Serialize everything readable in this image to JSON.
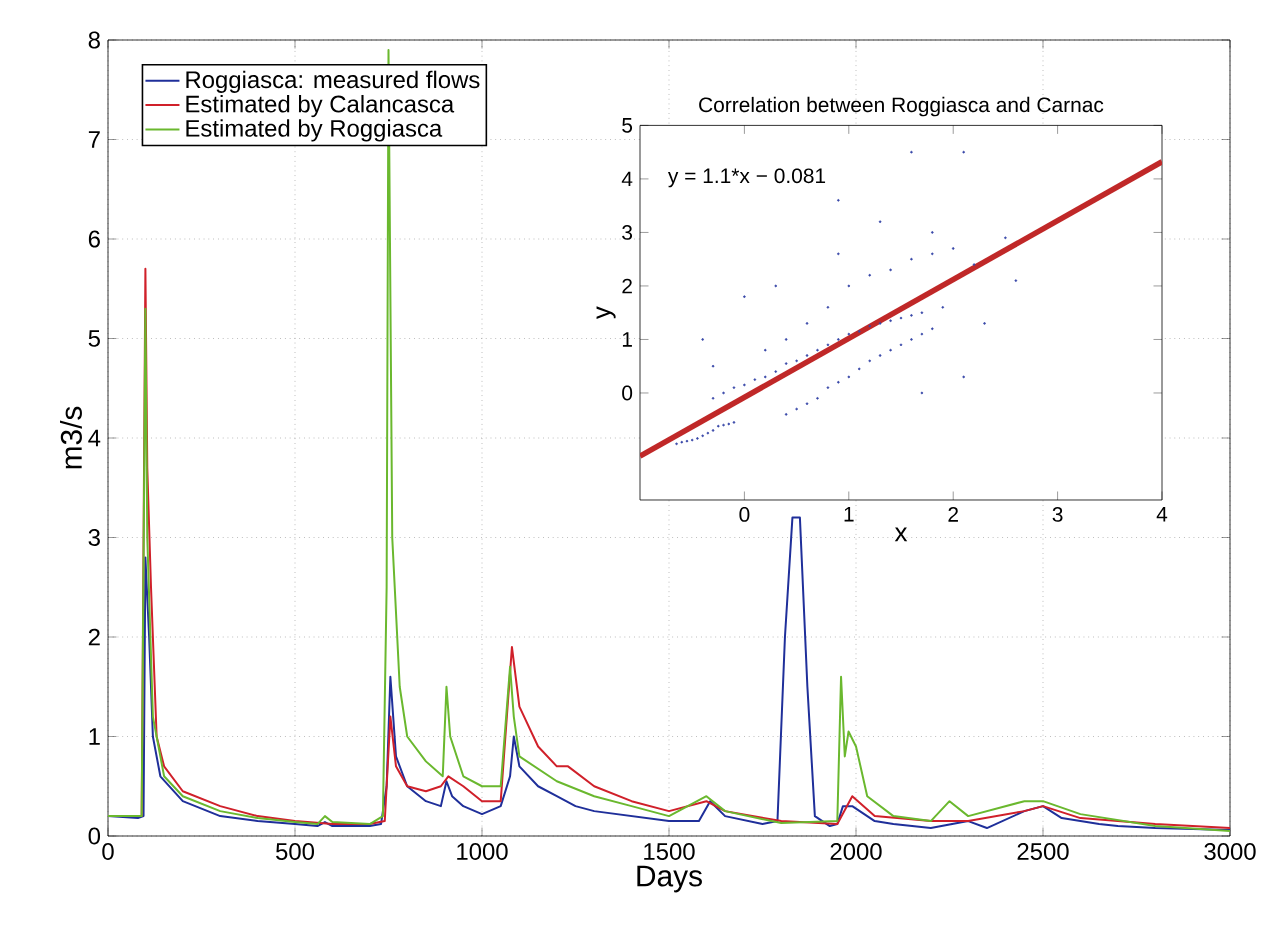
{
  "chart_data": [
    {
      "type": "line",
      "xlabel": "Days",
      "ylabel": "m3/s",
      "xlim": [
        0,
        3000
      ],
      "ylim": [
        0,
        8
      ],
      "xticks": [
        0,
        500,
        1000,
        1500,
        2000,
        2500,
        3000
      ],
      "yticks": [
        0,
        1,
        2,
        3,
        4,
        5,
        6,
        7,
        8
      ],
      "grid": true,
      "legend": "top left",
      "line_style": "solid",
      "marker": "none",
      "series": [
        {
          "name": "Roggiasca: measured flows",
          "color": "#1f2f9a",
          "x": [
            0,
            80,
            95,
            100,
            110,
            120,
            140,
            200,
            300,
            400,
            500,
            560,
            580,
            600,
            700,
            730,
            745,
            755,
            770,
            800,
            850,
            890,
            905,
            920,
            950,
            1000,
            1050,
            1075,
            1085,
            1100,
            1150,
            1200,
            1250,
            1300,
            1400,
            1500,
            1580,
            1610,
            1650,
            1750,
            1790,
            1810,
            1830,
            1850,
            1870,
            1890,
            1930,
            1950,
            1965,
            1990,
            2050,
            2100,
            2200,
            2300,
            2350,
            2450,
            2500,
            2550,
            2650,
            2700,
            2800,
            3000
          ],
          "values": [
            0.2,
            0.18,
            0.2,
            2.8,
            2.0,
            1.0,
            0.6,
            0.35,
            0.2,
            0.15,
            0.12,
            0.1,
            0.14,
            0.1,
            0.1,
            0.12,
            0.5,
            1.6,
            0.8,
            0.5,
            0.35,
            0.3,
            0.55,
            0.4,
            0.3,
            0.22,
            0.3,
            0.6,
            1.0,
            0.7,
            0.5,
            0.4,
            0.3,
            0.25,
            0.2,
            0.15,
            0.15,
            0.35,
            0.2,
            0.12,
            0.15,
            2.0,
            3.2,
            3.2,
            1.5,
            0.2,
            0.1,
            0.12,
            0.3,
            0.3,
            0.15,
            0.12,
            0.08,
            0.15,
            0.08,
            0.25,
            0.3,
            0.18,
            0.12,
            0.1,
            0.08,
            0.06
          ]
        },
        {
          "name": "Estimated by Calancasca",
          "color": "#d0202a",
          "x": [
            0,
            90,
            100,
            105,
            115,
            130,
            150,
            200,
            300,
            400,
            500,
            600,
            700,
            740,
            755,
            770,
            800,
            850,
            890,
            910,
            950,
            1000,
            1050,
            1080,
            1100,
            1150,
            1200,
            1230,
            1300,
            1400,
            1500,
            1600,
            1650,
            1800,
            1950,
            1990,
            2050,
            2200,
            2300,
            2450,
            2500,
            2600,
            2800,
            3000
          ],
          "values": [
            0.2,
            0.2,
            5.7,
            3.7,
            2.5,
            1.0,
            0.7,
            0.45,
            0.3,
            0.2,
            0.15,
            0.12,
            0.12,
            0.15,
            1.2,
            0.7,
            0.5,
            0.45,
            0.5,
            0.6,
            0.5,
            0.35,
            0.35,
            1.9,
            1.3,
            0.9,
            0.7,
            0.7,
            0.5,
            0.35,
            0.25,
            0.35,
            0.25,
            0.15,
            0.12,
            0.4,
            0.2,
            0.15,
            0.15,
            0.25,
            0.3,
            0.18,
            0.12,
            0.08
          ]
        },
        {
          "name": "Estimated by Roggiasca",
          "color": "#6ab82e",
          "x": [
            0,
            90,
            100,
            105,
            120,
            150,
            200,
            300,
            400,
            500,
            560,
            580,
            600,
            700,
            735,
            745,
            750,
            760,
            780,
            800,
            850,
            895,
            905,
            915,
            950,
            1000,
            1050,
            1075,
            1085,
            1100,
            1200,
            1300,
            1400,
            1500,
            1600,
            1650,
            1800,
            1950,
            1960,
            1970,
            1980,
            2000,
            2030,
            2100,
            2200,
            2250,
            2300,
            2450,
            2500,
            2600,
            2800,
            3000
          ],
          "values": [
            0.2,
            0.2,
            5.3,
            3.0,
            1.2,
            0.6,
            0.4,
            0.25,
            0.18,
            0.14,
            0.12,
            0.2,
            0.14,
            0.12,
            0.2,
            2.5,
            7.9,
            3.0,
            1.5,
            1.0,
            0.75,
            0.6,
            1.5,
            1.0,
            0.6,
            0.5,
            0.5,
            1.7,
            1.2,
            0.8,
            0.55,
            0.4,
            0.3,
            0.2,
            0.4,
            0.25,
            0.13,
            0.15,
            1.6,
            0.8,
            1.05,
            0.9,
            0.4,
            0.2,
            0.15,
            0.35,
            0.2,
            0.35,
            0.35,
            0.22,
            0.1,
            0.05
          ]
        }
      ]
    },
    {
      "type": "scatter",
      "title": "Correlation between Roggiasca and Carnac",
      "xlabel": "x",
      "ylabel": "y",
      "xlim": [
        -1,
        4
      ],
      "ylim": [
        -2,
        5
      ],
      "xticks": [
        0,
        1,
        2,
        3,
        4
      ],
      "yticks": [
        0,
        1,
        2,
        3,
        4,
        5
      ],
      "marker": "circle",
      "annotations": [
        "y = 1.1*x − 0.081"
      ],
      "series": [
        {
          "color": "#3848a8",
          "x": [
            -0.65,
            -0.6,
            -0.55,
            -0.5,
            -0.45,
            -0.4,
            -0.35,
            -0.3,
            -0.25,
            -0.2,
            -0.15,
            -0.1,
            -0.3,
            -0.2,
            -0.1,
            0,
            0.1,
            0.2,
            0.3,
            0.4,
            0.5,
            0.6,
            0.7,
            0.8,
            0.9,
            1.0,
            1.1,
            1.2,
            1.3,
            1.4,
            1.5,
            1.6,
            1.7,
            0.4,
            0.5,
            0.6,
            0.7,
            0.8,
            0.9,
            1.0,
            1.1,
            1.2,
            1.3,
            1.4,
            1.5,
            1.6,
            1.7,
            1.8,
            0.2,
            0.4,
            0.6,
            0.8,
            1.0,
            1.2,
            1.4,
            1.6,
            1.8,
            2.0,
            2.2,
            2.5,
            -0.4,
            -0.3,
            0.0,
            0.3,
            0.9,
            1.3,
            1.8,
            2.1,
            1.6,
            1.9,
            2.3,
            2.6,
            0.9,
            1.7,
            2.1
          ],
          "values": [
            -0.95,
            -0.92,
            -0.9,
            -0.88,
            -0.85,
            -0.8,
            -0.75,
            -0.7,
            -0.62,
            -0.6,
            -0.58,
            -0.55,
            -0.1,
            0.0,
            0.1,
            0.15,
            0.25,
            0.3,
            0.4,
            0.55,
            0.6,
            0.7,
            0.8,
            0.9,
            1.0,
            1.1,
            1.15,
            1.25,
            1.3,
            1.35,
            1.4,
            1.45,
            1.5,
            -0.4,
            -0.3,
            -0.2,
            -0.1,
            0.1,
            0.2,
            0.3,
            0.45,
            0.6,
            0.7,
            0.8,
            0.9,
            1.0,
            1.1,
            1.2,
            0.8,
            1.0,
            1.3,
            1.6,
            2.0,
            2.2,
            2.3,
            2.5,
            2.6,
            2.7,
            2.4,
            2.9,
            1.0,
            0.5,
            1.8,
            2.0,
            2.6,
            3.2,
            3.0,
            4.5,
            4.5,
            1.6,
            1.3,
            2.1,
            3.6,
            0.0,
            0.3
          ]
        },
        {
          "type": "line",
          "marker": "none",
          "color": "#c02828",
          "x": [
            -1,
            4
          ],
          "values": [
            -1.18,
            4.32
          ]
        }
      ]
    }
  ]
}
